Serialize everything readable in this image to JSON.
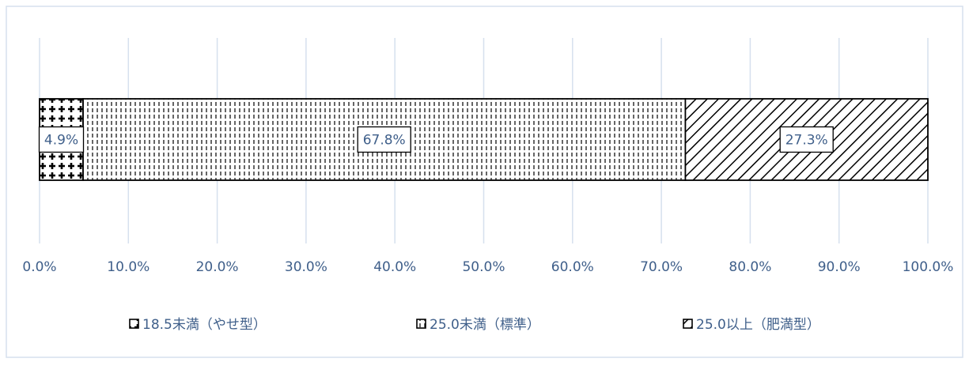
{
  "chart_data": {
    "type": "bar",
    "orientation": "horizontal",
    "stacked": true,
    "categories": [
      ""
    ],
    "series": [
      {
        "name": "18.5未満（やせ型）",
        "values": [
          4.9
        ],
        "label": "4.9%",
        "pattern": "crosses"
      },
      {
        "name": "25.0未満（標準）",
        "values": [
          67.8
        ],
        "label": "67.8%",
        "pattern": "vertical-dashes"
      },
      {
        "name": "25.0以上（肥満型）",
        "values": [
          27.3
        ],
        "label": "27.3%",
        "pattern": "diagonal-stripes"
      }
    ],
    "x_ticks": [
      "0.0%",
      "10.0%",
      "20.0%",
      "30.0%",
      "40.0%",
      "50.0%",
      "60.0%",
      "70.0%",
      "80.0%",
      "90.0%",
      "100.0%"
    ],
    "xlim": [
      0,
      100
    ],
    "grid": true,
    "legend_position": "bottom",
    "colors": {
      "axis_text": "#3f5f8a",
      "grid": "#d6e0ee",
      "border": "#d6e0ee",
      "ink": "#000000"
    }
  }
}
